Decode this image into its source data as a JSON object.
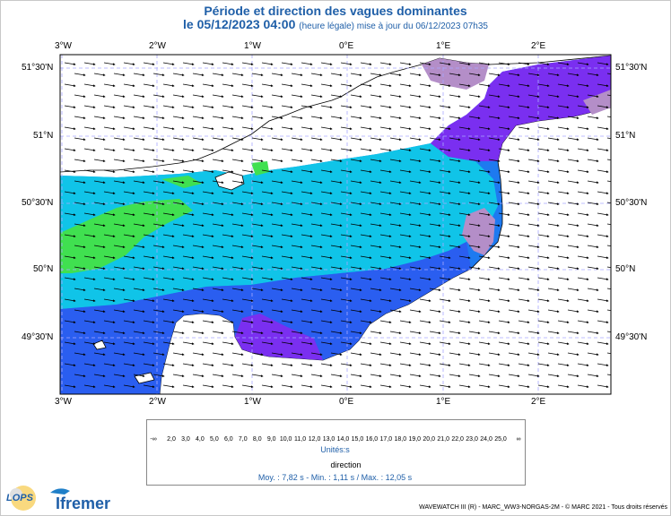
{
  "title": "Période et direction des vagues dominantes",
  "subtitle_date": "le 05/12/2023 04:00",
  "subtitle_note": "(heure légale) mise à jour du 06/12/2023 07h35",
  "lon_labels": [
    "3°W",
    "2°W",
    "1°W",
    "0°E",
    "1°E",
    "2°E"
  ],
  "lat_labels": [
    "51°30'N",
    "51°N",
    "50°30'N",
    "50°N",
    "49°30'N"
  ],
  "colorbar": {
    "ticks": [
      "-∞",
      "2,0",
      "3,0",
      "4,0",
      "5,0",
      "6,0",
      "7,0",
      "8,0",
      "9,0",
      "10,0",
      "11,0",
      "12,0",
      "13,0",
      "14,0",
      "15,0",
      "16,0",
      "17,0",
      "18,0",
      "19,0",
      "20,0",
      "21,0",
      "22,0",
      "23,0",
      "24,0",
      "25,0",
      "∞"
    ],
    "colors": [
      "#b48ec8",
      "#a868d8",
      "#7a2ff0",
      "#4a3ff0",
      "#2a5ef0",
      "#1e7af0",
      "#1a96f0",
      "#12b0f0",
      "#10c4e8",
      "#20d0c8",
      "#30d890",
      "#40e050",
      "#70e838",
      "#b8f020",
      "#e8f010",
      "#f8e010",
      "#f8c010",
      "#f8a010",
      "#f88010",
      "#f86010",
      "#f04010",
      "#e82010",
      "#e01010",
      "#d80808"
    ],
    "units": "Unités:s"
  },
  "direction_legend": "direction",
  "stats": "Moy. : 7,82 s   -   Min. : 1,11 s / Max. : 12,05 s",
  "credits": "WAVEWATCH III (R) - MARC_WW3-NORGAS-2M - © MARC 2021 - Tous droits réservés",
  "logos": {
    "lops": "LOPS",
    "ifremer": "Ifremer"
  },
  "data_colors": {
    "cyan": "#10c4e8",
    "blue": "#1e7af0",
    "deepblue": "#2a5ef0",
    "violet": "#7a2ff0",
    "lilac": "#b48ec8",
    "green": "#40e050"
  }
}
